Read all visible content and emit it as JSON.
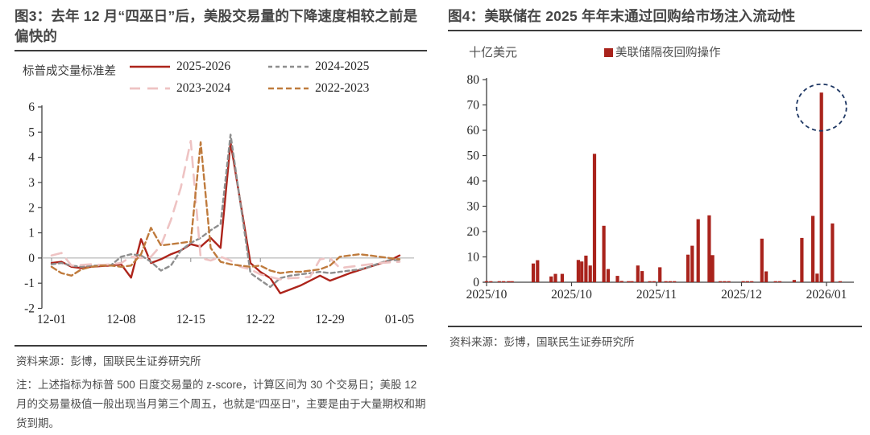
{
  "figure3": {
    "title": "图3：去年 12 月“四巫日”后，美股交易量的下降速度相较之前是偏快的",
    "source": "资料来源：彭博，国联民生证券研究所",
    "note": "注：上述指标为标普 500 日度交易量的 z-score，计算区间为 30 个交易日；美股 12 月的交易量极值一般出现当月第三个周五，也就是“四巫日”，主要是由于大量期权和期货到期。"
  },
  "figure4": {
    "title": "图4：美联储在 2025 年年末通过回购给市场注入流动性",
    "source": "资料来源：彭博，国联民生证券研究所"
  },
  "chart_data": [
    {
      "id": "fig3",
      "type": "line",
      "title": "去年 12 月“四巫日”后，美股交易量的下降速度相较之前是偏快的",
      "legend_label": "标普成交量标准差",
      "x_tick_labels": [
        "12-01",
        "12-08",
        "12-15",
        "12-22",
        "12-29",
        "01-05"
      ],
      "x_tick_days": [
        0,
        7,
        14,
        21,
        28,
        35
      ],
      "ylim": [
        -2,
        6
      ],
      "y_ticks": [
        6,
        5,
        4,
        3,
        2,
        1,
        0,
        -1,
        -2
      ],
      "grid": false,
      "legend_position": "top",
      "axis_color": "#404040",
      "zero_line_color": "#a8a8a8",
      "series": [
        {
          "name": "2025-2026",
          "color": "#ad241b",
          "dash": "",
          "width": 2.4,
          "points": [
            [
              0,
              -0.2
            ],
            [
              1,
              -0.15
            ],
            [
              2,
              -0.35
            ],
            [
              3,
              -0.4
            ],
            [
              4,
              -0.35
            ],
            [
              5,
              -0.32
            ],
            [
              6,
              -0.3
            ],
            [
              7,
              -0.25
            ],
            [
              8,
              -0.78
            ],
            [
              9,
              0.75
            ],
            [
              10,
              -0.2
            ],
            [
              11,
              -0.05
            ],
            [
              12,
              0.15
            ],
            [
              13,
              0.3
            ],
            [
              14,
              0.55
            ],
            [
              15,
              0.45
            ],
            [
              16,
              0.8
            ],
            [
              17,
              0.4
            ],
            [
              18,
              4.6
            ],
            [
              20,
              -0.2
            ],
            [
              21,
              -0.55
            ],
            [
              22,
              -0.8
            ],
            [
              23,
              -1.4
            ],
            [
              25,
              -1.1
            ],
            [
              27,
              -0.7
            ],
            [
              28,
              -0.9
            ],
            [
              30,
              -0.6
            ],
            [
              32,
              -0.35
            ],
            [
              34,
              -0.1
            ],
            [
              35,
              0.1
            ]
          ]
        },
        {
          "name": "2024-2025",
          "color": "#8e8e8e",
          "dash": "5,4",
          "width": 2.4,
          "points": [
            [
              0,
              -0.25
            ],
            [
              1,
              -0.2
            ],
            [
              2,
              -0.3
            ],
            [
              3,
              -0.35
            ],
            [
              4,
              -0.3
            ],
            [
              5,
              -0.3
            ],
            [
              6,
              -0.28
            ],
            [
              7,
              0.05
            ],
            [
              8,
              0.15
            ],
            [
              9,
              0.1
            ],
            [
              10,
              -0.15
            ],
            [
              11,
              -0.5
            ],
            [
              12,
              -0.3
            ],
            [
              13,
              0.3
            ],
            [
              14,
              0.6
            ],
            [
              15,
              0.8
            ],
            [
              16,
              1.1
            ],
            [
              17,
              1.35
            ],
            [
              18,
              4.9
            ],
            [
              20,
              -0.6
            ],
            [
              22,
              -1.15
            ],
            [
              23,
              -0.8
            ],
            [
              24,
              -0.7
            ],
            [
              25,
              -0.65
            ],
            [
              26,
              -0.6
            ],
            [
              27,
              -0.55
            ],
            [
              28,
              -0.6
            ],
            [
              29,
              -0.55
            ],
            [
              30,
              -0.5
            ],
            [
              31,
              -0.45
            ],
            [
              32,
              -0.35
            ],
            [
              33,
              -0.2
            ],
            [
              34,
              -0.08
            ],
            [
              35,
              -0.08
            ]
          ]
        },
        {
          "name": "2023-2024",
          "color": "#eec3c3",
          "dash": "13,9",
          "width": 2.6,
          "points": [
            [
              0,
              0.1
            ],
            [
              1,
              0.2
            ],
            [
              2,
              -0.3
            ],
            [
              3,
              -0.28
            ],
            [
              4,
              -0.25
            ],
            [
              5,
              -0.28
            ],
            [
              6,
              -0.25
            ],
            [
              7,
              -0.2
            ],
            [
              8,
              0.05
            ],
            [
              9,
              0.0
            ],
            [
              10,
              0.05
            ],
            [
              11,
              0.5
            ],
            [
              12,
              1.5
            ],
            [
              13,
              2.8
            ],
            [
              14,
              4.65
            ],
            [
              15,
              0.0
            ],
            [
              16,
              -0.1
            ],
            [
              17,
              0.05
            ],
            [
              18,
              -0.1
            ],
            [
              19,
              -0.35
            ],
            [
              20,
              -0.45
            ],
            [
              21,
              -0.65
            ],
            [
              22,
              -0.75
            ],
            [
              23,
              -0.85
            ],
            [
              24,
              -0.8
            ],
            [
              25,
              -0.78
            ],
            [
              26,
              -0.75
            ],
            [
              27,
              -0.05
            ],
            [
              28,
              0.0
            ],
            [
              29,
              -0.4
            ],
            [
              31,
              -0.3
            ],
            [
              33,
              -0.2
            ],
            [
              35,
              -0.15
            ]
          ]
        },
        {
          "name": "2022-2023",
          "color": "#bf7b3d",
          "dash": "7,4",
          "width": 2.4,
          "points": [
            [
              0,
              -0.35
            ],
            [
              1,
              -0.6
            ],
            [
              2,
              -0.7
            ],
            [
              3,
              -0.45
            ],
            [
              4,
              -0.35
            ],
            [
              5,
              -0.3
            ],
            [
              6,
              -0.3
            ],
            [
              7,
              -0.35
            ],
            [
              8,
              -0.3
            ],
            [
              9,
              0.15
            ],
            [
              10,
              1.2
            ],
            [
              11,
              0.5
            ],
            [
              12,
              0.55
            ],
            [
              13,
              0.6
            ],
            [
              14,
              0.65
            ],
            [
              15,
              4.6
            ],
            [
              16,
              0.4
            ],
            [
              17,
              -0.15
            ],
            [
              18,
              -0.25
            ],
            [
              19,
              -0.3
            ],
            [
              20,
              -0.35
            ],
            [
              21,
              -0.3
            ],
            [
              22,
              -0.5
            ],
            [
              23,
              -0.6
            ],
            [
              24,
              -0.55
            ],
            [
              25,
              -0.55
            ],
            [
              26,
              -0.5
            ],
            [
              27,
              -0.45
            ],
            [
              28,
              -0.3
            ],
            [
              29,
              0.05
            ],
            [
              30,
              0.1
            ],
            [
              31,
              0.15
            ],
            [
              32,
              0.1
            ],
            [
              33,
              0.05
            ],
            [
              34,
              0.0
            ],
            [
              35,
              -0.05
            ]
          ]
        }
      ]
    },
    {
      "id": "fig4",
      "type": "bar",
      "title": "美联储在 2025 年年末通过回购给市场注入流动性",
      "unit_label": "十亿美元",
      "legend": "美联储隔夜回购操作",
      "bar_color": "#a9231c",
      "axis_color": "#404040",
      "x_tick_labels": [
        "2025/10",
        "2025/10",
        "2025/11",
        "2025/12",
        "2026/01"
      ],
      "ylim": [
        0,
        80
      ],
      "y_ticks": [
        80,
        70,
        60,
        50,
        40,
        30,
        20,
        10,
        0
      ],
      "bars": [
        [
          0.0,
          0.4
        ],
        [
          0.05,
          0.4
        ],
        [
          0.15,
          0.4
        ],
        [
          0.2,
          0.4
        ],
        [
          0.26,
          0.4
        ],
        [
          0.3,
          0.4
        ],
        [
          0.55,
          7.4
        ],
        [
          0.6,
          8.7
        ],
        [
          0.76,
          2.3
        ],
        [
          0.81,
          3.3
        ],
        [
          0.89,
          3.3
        ],
        [
          1.08,
          8.8
        ],
        [
          1.12,
          8.2
        ],
        [
          1.17,
          10.5
        ],
        [
          1.22,
          6.6
        ],
        [
          1.27,
          50.7
        ],
        [
          1.38,
          22.3
        ],
        [
          1.43,
          5.2
        ],
        [
          1.54,
          2.5
        ],
        [
          1.59,
          0.5
        ],
        [
          1.67,
          0.4
        ],
        [
          1.71,
          0.4
        ],
        [
          1.78,
          6.6
        ],
        [
          1.83,
          4.4
        ],
        [
          1.92,
          0.4
        ],
        [
          1.97,
          0.4
        ],
        [
          2.04,
          5.9
        ],
        [
          2.11,
          0.4
        ],
        [
          2.16,
          0.4
        ],
        [
          2.21,
          0.4
        ],
        [
          2.37,
          10.9
        ],
        [
          2.42,
          14.4
        ],
        [
          2.49,
          24.9
        ],
        [
          2.62,
          26.4
        ],
        [
          2.66,
          10.7
        ],
        [
          2.75,
          0.4
        ],
        [
          2.8,
          0.4
        ],
        [
          2.85,
          0.4
        ],
        [
          3.02,
          0.4
        ],
        [
          3.07,
          0.4
        ],
        [
          3.12,
          0.4
        ],
        [
          3.24,
          17.2
        ],
        [
          3.29,
          4.3
        ],
        [
          3.4,
          0.4
        ],
        [
          3.45,
          0.4
        ],
        [
          3.62,
          0.9
        ],
        [
          3.71,
          17.5
        ],
        [
          3.84,
          26.2
        ],
        [
          3.89,
          3.4
        ],
        [
          3.94,
          74.9
        ],
        [
          4.07,
          23.2
        ],
        [
          4.16,
          0.4
        ]
      ],
      "annotation_circle": {
        "x": 3.94,
        "y": 69,
        "color": "#1f3864"
      }
    }
  ]
}
